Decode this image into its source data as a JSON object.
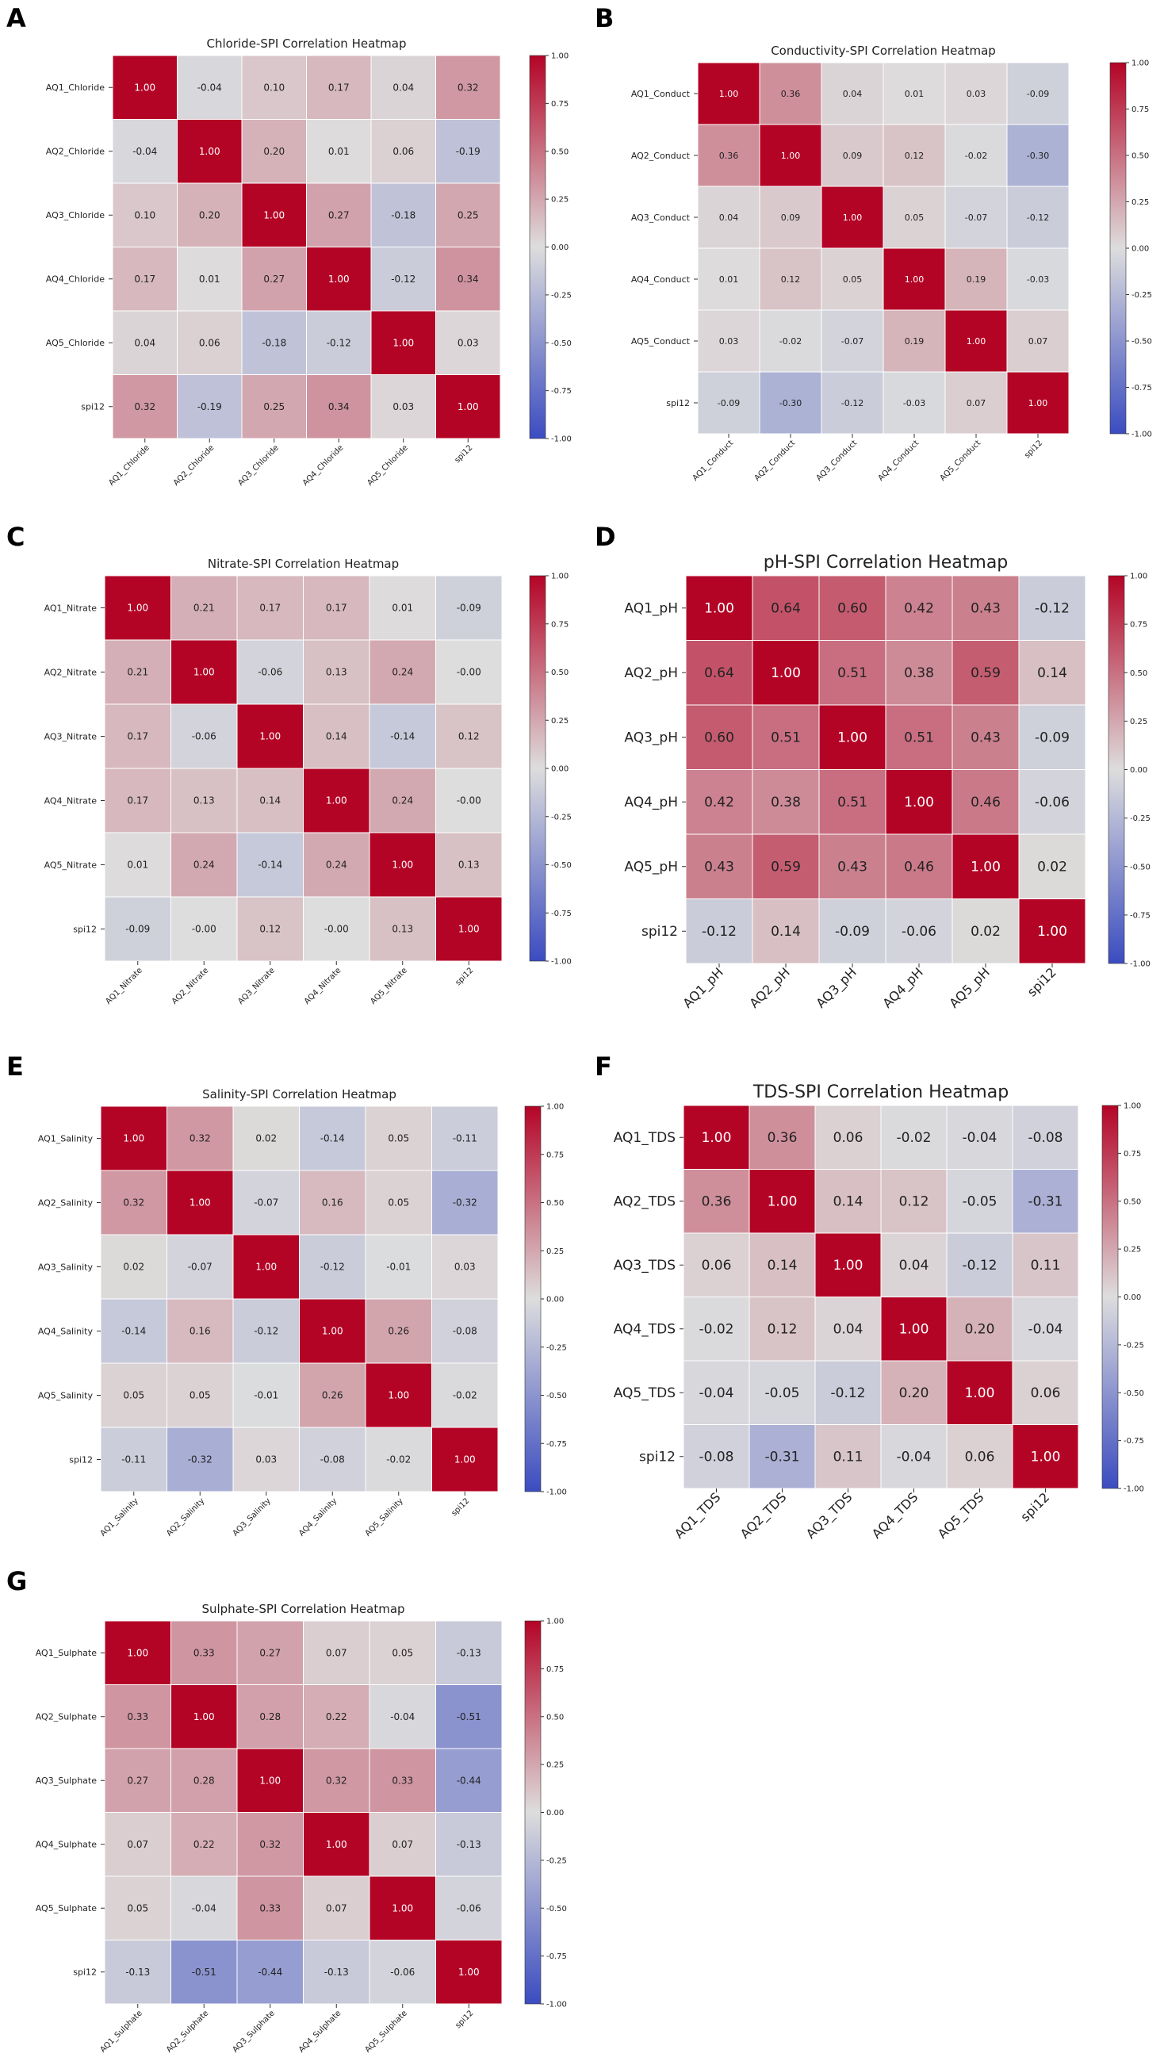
{
  "colors": {
    "min": "#3b4cc0",
    "mid": "#dddddd",
    "max": "#b40426",
    "grid": "#ffffff"
  },
  "chart_data": [
    {
      "panel": "A",
      "type": "heatmap",
      "title": "Chloride-SPI Correlation Heatmap",
      "rows": [
        "AQ1_Chloride",
        "AQ2_Chloride",
        "AQ3_Chloride",
        "AQ4_Chloride",
        "AQ5_Chloride",
        "spi12"
      ],
      "cols": [
        "AQ1_Chloride",
        "AQ2_Chloride",
        "AQ3_Chloride",
        "AQ4_Chloride",
        "AQ5_Chloride",
        "spi12"
      ],
      "values": [
        [
          1.0,
          -0.04,
          0.1,
          0.17,
          0.04,
          0.32
        ],
        [
          -0.04,
          1.0,
          0.2,
          0.01,
          0.06,
          -0.19
        ],
        [
          0.1,
          0.2,
          1.0,
          0.27,
          -0.18,
          0.25
        ],
        [
          0.17,
          0.01,
          0.27,
          1.0,
          -0.12,
          0.34
        ],
        [
          0.04,
          0.06,
          -0.18,
          -0.12,
          1.0,
          0.03
        ],
        [
          0.32,
          -0.19,
          0.25,
          0.34,
          0.03,
          1.0
        ]
      ],
      "labels": [
        [
          "1.00",
          "-0.04",
          "0.10",
          "0.17",
          "0.04",
          "0.32"
        ],
        [
          "-0.04",
          "1.00",
          "0.20",
          "0.01",
          "0.06",
          "-0.19"
        ],
        [
          "0.10",
          "0.20",
          "1.00",
          "0.27",
          "-0.18",
          "0.25"
        ],
        [
          "0.17",
          "0.01",
          "0.27",
          "1.00",
          "-0.12",
          "0.34"
        ],
        [
          "0.04",
          "0.06",
          "-0.18",
          "-0.12",
          "1.00",
          "0.03"
        ],
        [
          "0.32",
          "-0.19",
          "0.25",
          "0.34",
          "0.03",
          "1.00"
        ]
      ],
      "vmin": -1.0,
      "vmax": 1.0,
      "colorbar_ticks": [
        "1.00",
        "0.75",
        "0.50",
        "0.25",
        "0.00",
        "-0.25",
        "-0.50",
        "-0.75",
        "-1.00"
      ]
    },
    {
      "panel": "B",
      "type": "heatmap",
      "title": "Conductivity-SPI Correlation Heatmap",
      "rows": [
        "AQ1_Conduct",
        "AQ2_Conduct",
        "AQ3_Conduct",
        "AQ4_Conduct",
        "AQ5_Conduct",
        "spi12"
      ],
      "cols": [
        "AQ1_Conduct",
        "AQ2_Conduct",
        "AQ3_Conduct",
        "AQ4_Conduct",
        "AQ5_Conduct",
        "spi12"
      ],
      "values": [
        [
          1.0,
          0.36,
          0.04,
          0.01,
          0.03,
          -0.09
        ],
        [
          0.36,
          1.0,
          0.09,
          0.12,
          -0.02,
          -0.3
        ],
        [
          0.04,
          0.09,
          1.0,
          0.05,
          -0.07,
          -0.12
        ],
        [
          0.01,
          0.12,
          0.05,
          1.0,
          0.19,
          -0.03
        ],
        [
          0.03,
          -0.02,
          -0.07,
          0.19,
          1.0,
          0.07
        ],
        [
          -0.09,
          -0.3,
          -0.12,
          -0.03,
          0.07,
          1.0
        ]
      ],
      "labels": [
        [
          "1.00",
          "0.36",
          "0.04",
          "0.01",
          "0.03",
          "-0.09"
        ],
        [
          "0.36",
          "1.00",
          "0.09",
          "0.12",
          "-0.02",
          "-0.30"
        ],
        [
          "0.04",
          "0.09",
          "1.00",
          "0.05",
          "-0.07",
          "-0.12"
        ],
        [
          "0.01",
          "0.12",
          "0.05",
          "1.00",
          "0.19",
          "-0.03"
        ],
        [
          "0.03",
          "-0.02",
          "-0.07",
          "0.19",
          "1.00",
          "0.07"
        ],
        [
          "-0.09",
          "-0.30",
          "-0.12",
          "-0.03",
          "0.07",
          "1.00"
        ]
      ],
      "vmin": -1.0,
      "vmax": 1.0,
      "colorbar_ticks": [
        "1.00",
        "0.75",
        "0.50",
        "0.25",
        "0.00",
        "-0.25",
        "-0.50",
        "-0.75",
        "-1.00"
      ]
    },
    {
      "panel": "C",
      "type": "heatmap",
      "title": "Nitrate-SPI Correlation Heatmap",
      "rows": [
        "AQ1_Nitrate",
        "AQ2_Nitrate",
        "AQ3_Nitrate",
        "AQ4_Nitrate",
        "AQ5_Nitrate",
        "spi12"
      ],
      "cols": [
        "AQ1_Nitrate",
        "AQ2_Nitrate",
        "AQ3_Nitrate",
        "AQ4_Nitrate",
        "AQ5_Nitrate",
        "spi12"
      ],
      "values": [
        [
          1.0,
          0.21,
          0.17,
          0.17,
          0.01,
          -0.09
        ],
        [
          0.21,
          1.0,
          -0.06,
          0.13,
          0.24,
          0.0
        ],
        [
          0.17,
          -0.06,
          1.0,
          0.14,
          -0.14,
          0.12
        ],
        [
          0.17,
          0.13,
          0.14,
          1.0,
          0.24,
          0.0
        ],
        [
          0.01,
          0.24,
          -0.14,
          0.24,
          1.0,
          0.13
        ],
        [
          -0.09,
          0.0,
          0.12,
          0.0,
          0.13,
          1.0
        ]
      ],
      "labels": [
        [
          "1.00",
          "0.21",
          "0.17",
          "0.17",
          "0.01",
          "-0.09"
        ],
        [
          "0.21",
          "1.00",
          "-0.06",
          "0.13",
          "0.24",
          "-0.00"
        ],
        [
          "0.17",
          "-0.06",
          "1.00",
          "0.14",
          "-0.14",
          "0.12"
        ],
        [
          "0.17",
          "0.13",
          "0.14",
          "1.00",
          "0.24",
          "-0.00"
        ],
        [
          "0.01",
          "0.24",
          "-0.14",
          "0.24",
          "1.00",
          "0.13"
        ],
        [
          "-0.09",
          "-0.00",
          "0.12",
          "-0.00",
          "0.13",
          "1.00"
        ]
      ],
      "vmin": -1.0,
      "vmax": 1.0,
      "colorbar_ticks": [
        "1.00",
        "0.75",
        "0.50",
        "0.25",
        "0.00",
        "-0.25",
        "-0.50",
        "-0.75",
        "-1.00"
      ]
    },
    {
      "panel": "D",
      "type": "heatmap",
      "title": "pH-SPI Correlation Heatmap",
      "rows": [
        "AQ1_pH",
        "AQ2_pH",
        "AQ3_pH",
        "AQ4_pH",
        "AQ5_pH",
        "spi12"
      ],
      "cols": [
        "AQ1_pH",
        "AQ2_pH",
        "AQ3_pH",
        "AQ4_pH",
        "AQ5_pH",
        "spi12"
      ],
      "values": [
        [
          1.0,
          0.64,
          0.6,
          0.42,
          0.43,
          -0.12
        ],
        [
          0.64,
          1.0,
          0.51,
          0.38,
          0.59,
          0.14
        ],
        [
          0.6,
          0.51,
          1.0,
          0.51,
          0.43,
          -0.09
        ],
        [
          0.42,
          0.38,
          0.51,
          1.0,
          0.46,
          -0.06
        ],
        [
          0.43,
          0.59,
          0.43,
          0.46,
          1.0,
          0.02
        ],
        [
          -0.12,
          0.14,
          -0.09,
          -0.06,
          0.02,
          1.0
        ]
      ],
      "labels": [
        [
          "1.00",
          "0.64",
          "0.60",
          "0.42",
          "0.43",
          "-0.12"
        ],
        [
          "0.64",
          "1.00",
          "0.51",
          "0.38",
          "0.59",
          "0.14"
        ],
        [
          "0.60",
          "0.51",
          "1.00",
          "0.51",
          "0.43",
          "-0.09"
        ],
        [
          "0.42",
          "0.38",
          "0.51",
          "1.00",
          "0.46",
          "-0.06"
        ],
        [
          "0.43",
          "0.59",
          "0.43",
          "0.46",
          "1.00",
          "0.02"
        ],
        [
          "-0.12",
          "0.14",
          "-0.09",
          "-0.06",
          "0.02",
          "1.00"
        ]
      ],
      "vmin": -1.0,
      "vmax": 1.0,
      "colorbar_ticks": [
        "1.00",
        "0.75",
        "0.50",
        "0.25",
        "0.00",
        "-0.25",
        "-0.50",
        "-0.75",
        "-1.00"
      ]
    },
    {
      "panel": "E",
      "type": "heatmap",
      "title": "Salinity-SPI Correlation Heatmap",
      "rows": [
        "AQ1_Salinity",
        "AQ2_Salinity",
        "AQ3_Salinity",
        "AQ4_Salinity",
        "AQ5_Salinity",
        "spi12"
      ],
      "cols": [
        "AQ1_Salinity",
        "AQ2_Salinity",
        "AQ3_Salinity",
        "AQ4_Salinity",
        "AQ5_Salinity",
        "spi12"
      ],
      "values": [
        [
          1.0,
          0.32,
          0.02,
          -0.14,
          0.05,
          -0.11
        ],
        [
          0.32,
          1.0,
          -0.07,
          0.16,
          0.05,
          -0.32
        ],
        [
          0.02,
          -0.07,
          1.0,
          -0.12,
          -0.01,
          0.03
        ],
        [
          -0.14,
          0.16,
          -0.12,
          1.0,
          0.26,
          -0.08
        ],
        [
          0.05,
          0.05,
          -0.01,
          0.26,
          1.0,
          -0.02
        ],
        [
          -0.11,
          -0.32,
          0.03,
          -0.08,
          -0.02,
          1.0
        ]
      ],
      "labels": [
        [
          "1.00",
          "0.32",
          "0.02",
          "-0.14",
          "0.05",
          "-0.11"
        ],
        [
          "0.32",
          "1.00",
          "-0.07",
          "0.16",
          "0.05",
          "-0.32"
        ],
        [
          "0.02",
          "-0.07",
          "1.00",
          "-0.12",
          "-0.01",
          "0.03"
        ],
        [
          "-0.14",
          "0.16",
          "-0.12",
          "1.00",
          "0.26",
          "-0.08"
        ],
        [
          "0.05",
          "0.05",
          "-0.01",
          "0.26",
          "1.00",
          "-0.02"
        ],
        [
          "-0.11",
          "-0.32",
          "0.03",
          "-0.08",
          "-0.02",
          "1.00"
        ]
      ],
      "vmin": -1.0,
      "vmax": 1.0,
      "colorbar_ticks": [
        "1.00",
        "0.75",
        "0.50",
        "0.25",
        "0.00",
        "-0.25",
        "-0.50",
        "-0.75",
        "-1.00"
      ]
    },
    {
      "panel": "F",
      "type": "heatmap",
      "title": "TDS-SPI Correlation Heatmap",
      "rows": [
        "AQ1_TDS",
        "AQ2_TDS",
        "AQ3_TDS",
        "AQ4_TDS",
        "AQ5_TDS",
        "spi12"
      ],
      "cols": [
        "AQ1_TDS",
        "AQ2_TDS",
        "AQ3_TDS",
        "AQ4_TDS",
        "AQ5_TDS",
        "spi12"
      ],
      "values": [
        [
          1.0,
          0.36,
          0.06,
          -0.02,
          -0.04,
          -0.08
        ],
        [
          0.36,
          1.0,
          0.14,
          0.12,
          -0.05,
          -0.31
        ],
        [
          0.06,
          0.14,
          1.0,
          0.04,
          -0.12,
          0.11
        ],
        [
          -0.02,
          0.12,
          0.04,
          1.0,
          0.2,
          -0.04
        ],
        [
          -0.04,
          -0.05,
          -0.12,
          0.2,
          1.0,
          0.06
        ],
        [
          -0.08,
          -0.31,
          0.11,
          -0.04,
          0.06,
          1.0
        ]
      ],
      "labels": [
        [
          "1.00",
          "0.36",
          "0.06",
          "-0.02",
          "-0.04",
          "-0.08"
        ],
        [
          "0.36",
          "1.00",
          "0.14",
          "0.12",
          "-0.05",
          "-0.31"
        ],
        [
          "0.06",
          "0.14",
          "1.00",
          "0.04",
          "-0.12",
          "0.11"
        ],
        [
          "-0.02",
          "0.12",
          "0.04",
          "1.00",
          "0.20",
          "-0.04"
        ],
        [
          "-0.04",
          "-0.05",
          "-0.12",
          "0.20",
          "1.00",
          "0.06"
        ],
        [
          "-0.08",
          "-0.31",
          "0.11",
          "-0.04",
          "0.06",
          "1.00"
        ]
      ],
      "vmin": -1.0,
      "vmax": 1.0,
      "colorbar_ticks": [
        "1.00",
        "0.75",
        "0.50",
        "0.25",
        "0.00",
        "-0.25",
        "-0.50",
        "-0.75",
        "-1.00"
      ]
    },
    {
      "panel": "G",
      "type": "heatmap",
      "title": "Sulphate-SPI Correlation Heatmap",
      "rows": [
        "AQ1_Sulphate",
        "AQ2_Sulphate",
        "AQ3_Sulphate",
        "AQ4_Sulphate",
        "AQ5_Sulphate",
        "spi12"
      ],
      "cols": [
        "AQ1_Sulphate",
        "AQ2_Sulphate",
        "AQ3_Sulphate",
        "AQ4_Sulphate",
        "AQ5_Sulphate",
        "spi12"
      ],
      "values": [
        [
          1.0,
          0.33,
          0.27,
          0.07,
          0.05,
          -0.13
        ],
        [
          0.33,
          1.0,
          0.28,
          0.22,
          -0.04,
          -0.51
        ],
        [
          0.27,
          0.28,
          1.0,
          0.32,
          0.33,
          -0.44
        ],
        [
          0.07,
          0.22,
          0.32,
          1.0,
          0.07,
          -0.13
        ],
        [
          0.05,
          -0.04,
          0.33,
          0.07,
          1.0,
          -0.06
        ],
        [
          -0.13,
          -0.51,
          -0.44,
          -0.13,
          -0.06,
          1.0
        ]
      ],
      "labels": [
        [
          "1.00",
          "0.33",
          "0.27",
          "0.07",
          "0.05",
          "-0.13"
        ],
        [
          "0.33",
          "1.00",
          "0.28",
          "0.22",
          "-0.04",
          "-0.51"
        ],
        [
          "0.27",
          "0.28",
          "1.00",
          "0.32",
          "0.33",
          "-0.44"
        ],
        [
          "0.07",
          "0.22",
          "0.32",
          "1.00",
          "0.07",
          "-0.13"
        ],
        [
          "0.05",
          "-0.04",
          "0.33",
          "0.07",
          "1.00",
          "-0.06"
        ],
        [
          "-0.13",
          "-0.51",
          "-0.44",
          "-0.13",
          "-0.06",
          "1.00"
        ]
      ],
      "vmin": -1.0,
      "vmax": 1.0,
      "colorbar_ticks": [
        "1.00",
        "0.75",
        "0.50",
        "0.25",
        "0.00",
        "-0.25",
        "-0.50",
        "-0.75",
        "-1.00"
      ]
    }
  ]
}
